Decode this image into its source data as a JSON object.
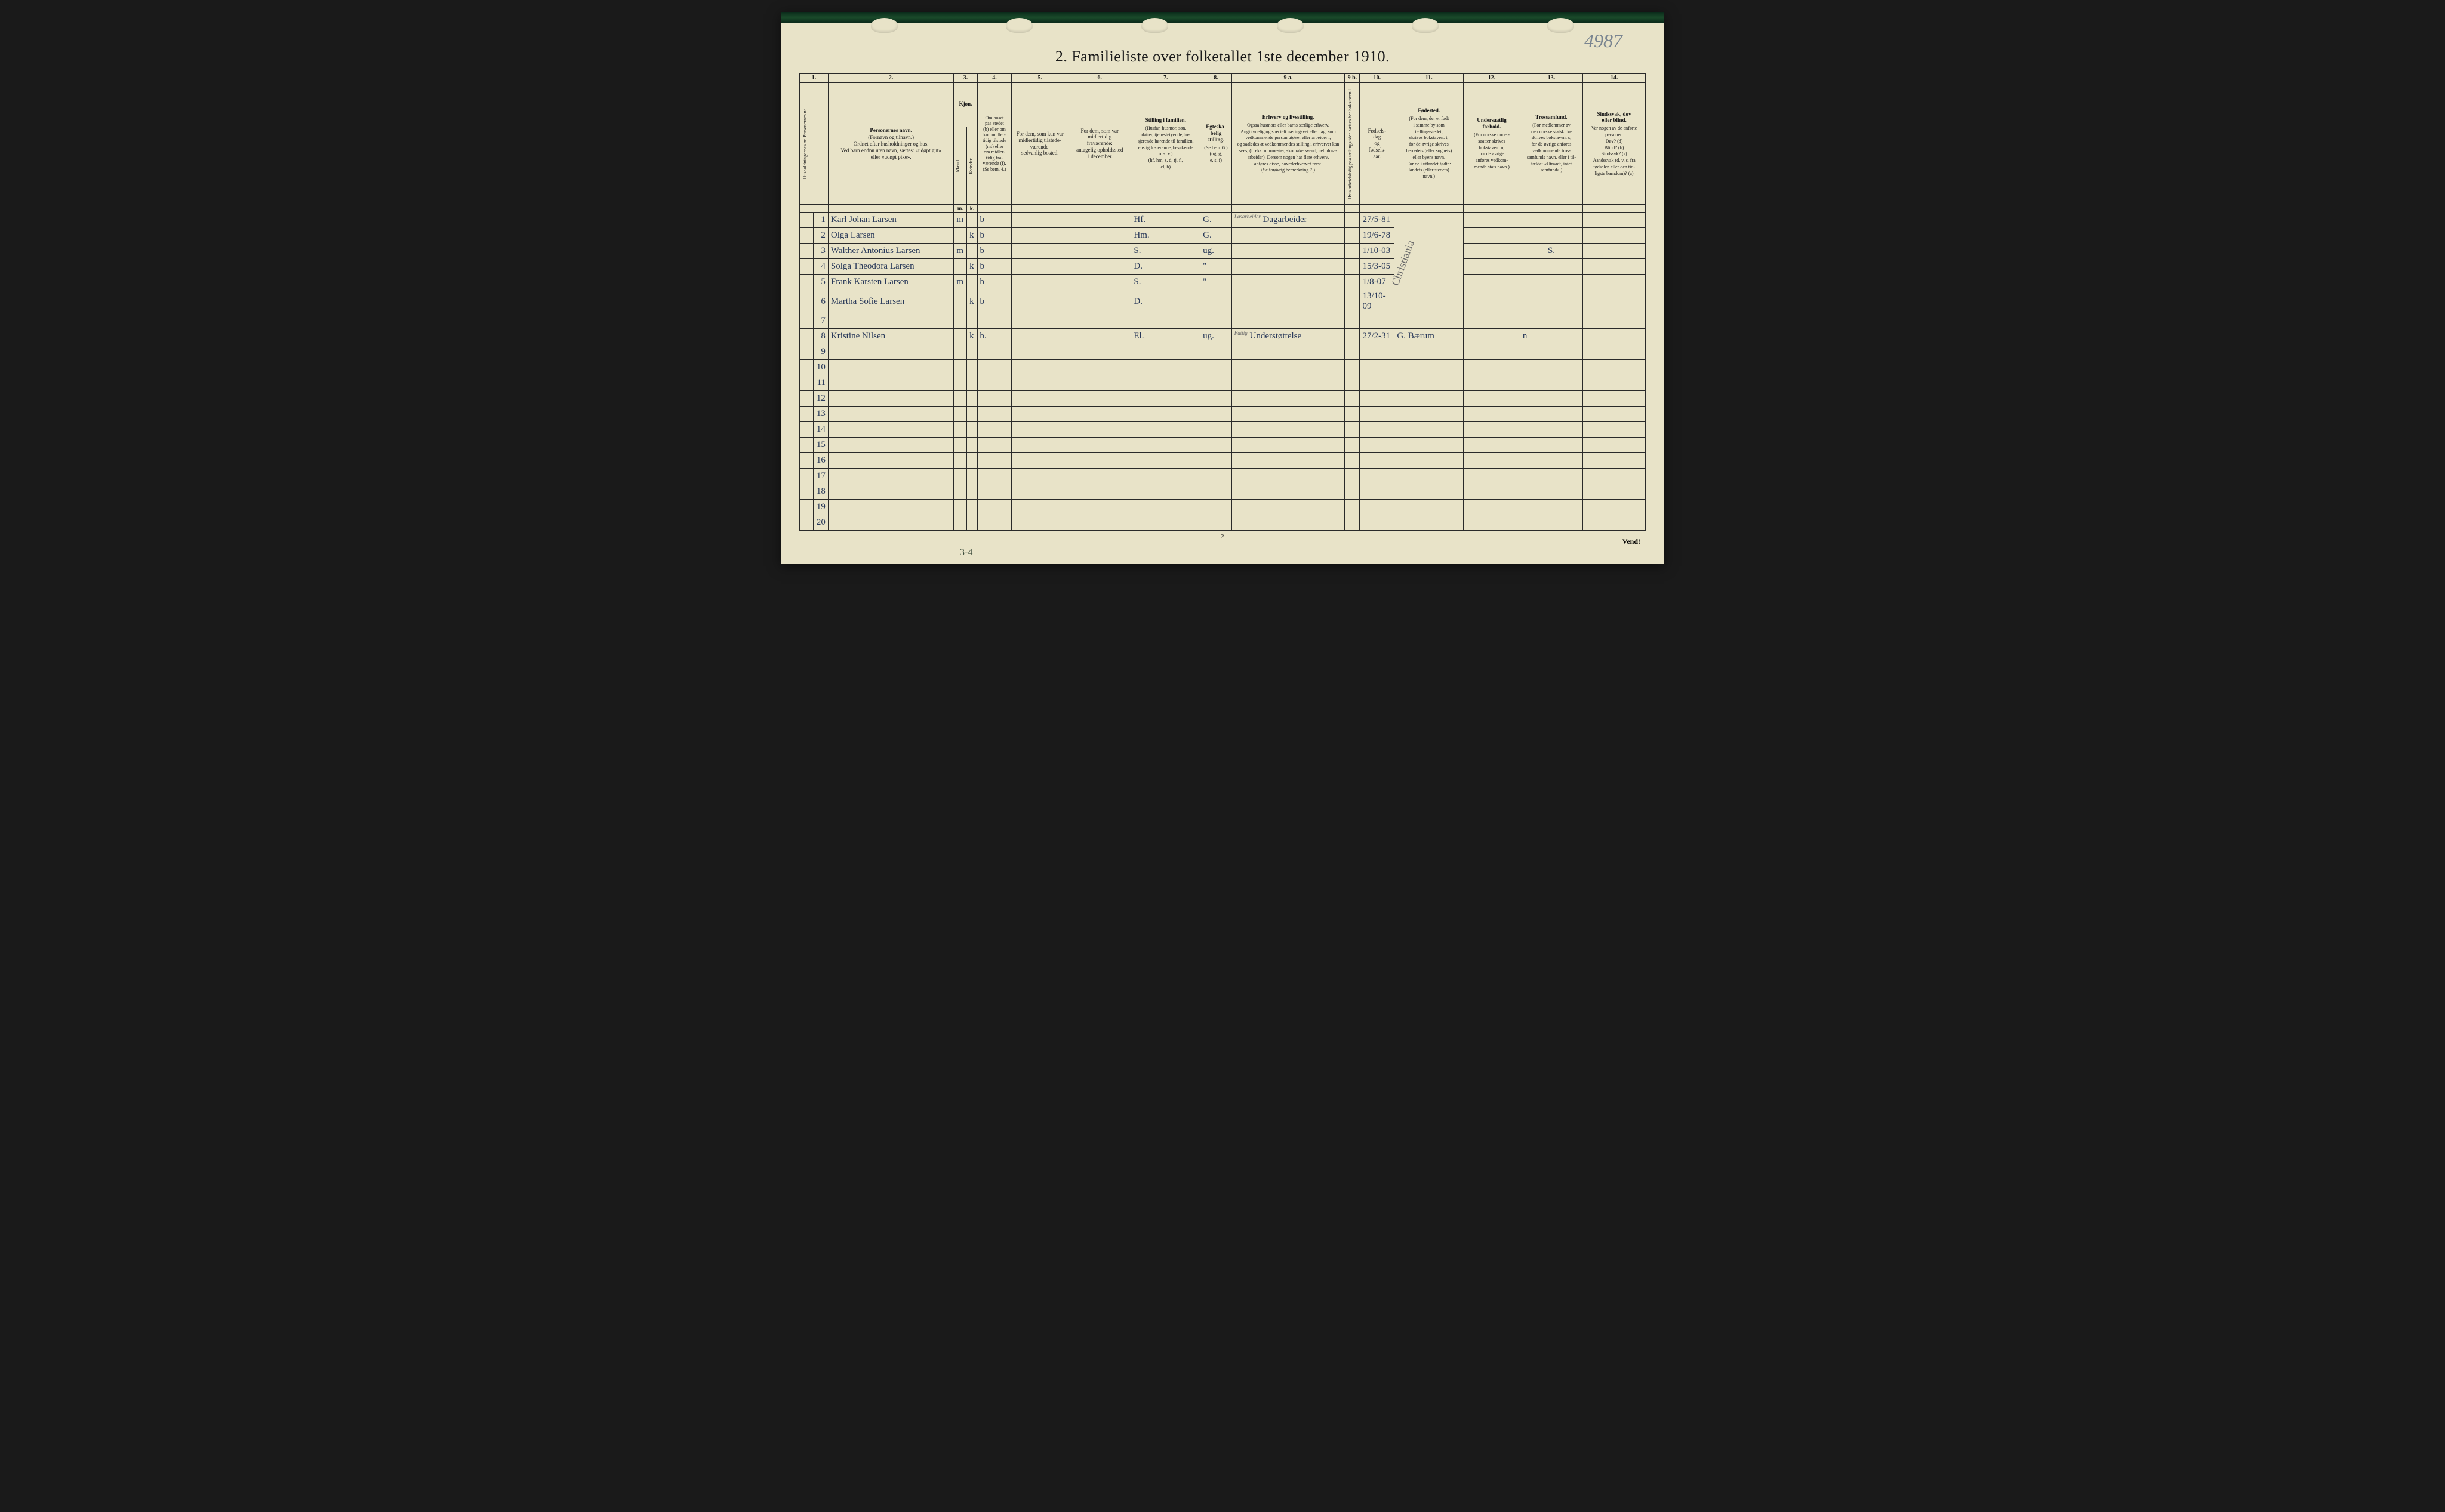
{
  "page": {
    "handwritten_number": "4987",
    "title": "2.  Familieliste over folketallet 1ste december 1910.",
    "footer_page": "2",
    "bottom_annotation": "3-4",
    "vend": "Vend!",
    "birthplace_vertical": "Christiania"
  },
  "col_numbers": [
    "1.",
    "2.",
    "3.",
    "4.",
    "5.",
    "6.",
    "7.",
    "8.",
    "9 a.",
    "9 b.",
    "10.",
    "11.",
    "12.",
    "13.",
    "14."
  ],
  "headers": {
    "c1": "Husholdningernes nr.\nPersonernes nr.",
    "c2_title": "Personernes navn.",
    "c2_sub": "(Fornavn og tilnavn.)\nOrdnet efter husholdninger og hus.\nVed barn endnu uten navn, sættes: «udøpt gut»\neller «udøpt pike».",
    "c3_title": "Kjøn.",
    "c3_m": "Mænd.",
    "c3_k": "Kvinder.",
    "c3_mk_m": "m.",
    "c3_mk_k": "k.",
    "c4": "Om bosat\npaa stedet\n(b) eller om\nkun midler-\ntidig tilstede\n(mt) eller\nom midler-\ntidig fra-\nværende (f).\n(Se bem. 4.)",
    "c5": "For dem, som kun var\nmidlertidig tilstede-\nværende:\nsedvanlig bosted.",
    "c6": "For dem, som var\nmidlertidig\nfraværende:\nantagelig opholdssted\n1 december.",
    "c7_title": "Stilling i familien.",
    "c7_sub": "(Husfar, husmor, søn,\ndatter, tjenestetyende, lo-\nsjerende hørende til familien,\nenslig losjerende, besøkende\no. s. v.)\n(hf, hm, s, d, tj, fl,\nel, b)",
    "c8_title": "Egteska-\nbelig\nstilling.",
    "c8_sub": "(Se bem. 6.)\n(ug, g,\ne, s, f)",
    "c9_title": "Erhverv og livsstilling.",
    "c9_sub": "Ogsaa husmors eller barns særlige erhverv.\nAngi tydelig og specielt næringsvei eller fag, som\nvedkommende person utøver eller arbeider i,\nog saaledes at vedkommendes stilling i erhvervet kan\nsees, (f. eks. murmester, skomakersvend, cellulose-\narbeider). Dersom nogen har flere erhverv,\nanføres disse, hovederhvervet først.\n(Se forøvrig bemerkning 7.)",
    "c9b": "Hvis arbeidsledig\npaa tællingstiden sættes\nher bokstaven l.",
    "c10_title": "Fødsels-\ndag\nog\nfødsels-\naar.",
    "c11_title": "Fødested.",
    "c11_sub": "(For dem, der er født\ni samme by som\ntællingsstedet,\nskrives bokstaven: t;\nfor de øvrige skrives\nherredets (eller sognets)\neller byens navn.\nFor de i utlandet fødte:\nlandets (eller stedets)\nnavn.)",
    "c12_title": "Undersaatlig\nforhold.",
    "c12_sub": "(For norske under-\nsaatter skrives\nbokstaven: n;\nfor de øvrige\nanføres vedkom-\nmende stats navn.)",
    "c13_title": "Trossamfund.",
    "c13_sub": "(For medlemmer av\nden norske statskirke\nskrives bokstaven: s;\nfor de øvrige anføres\nvedkommende tros-\nsamfunds navn, eller i til-\nfælde: «Utraadt, intet\nsamfund».)",
    "c14_title": "Sindssvak, døv\neller blind.",
    "c14_sub": "Var nogen av de anførte\npersoner:\nDøv?        (d)\nBlind?      (b)\nSindssyk?  (s)\nAandssvak (d. v. s. fra\nfødselen eller den tid-\nligste barndom)? (a)"
  },
  "rows": [
    {
      "n": "1",
      "name": "Karl Johan Larsen",
      "m": "m",
      "k": "",
      "b": "b",
      "c5": "",
      "c6": "",
      "c7": "Hf.",
      "c8": "G.",
      "c9_sup": "Løsarbeider",
      "c9": "Dagarbeider",
      "c10": "27/5-81",
      "c11": "",
      "c12": "",
      "c13": "",
      "c14": ""
    },
    {
      "n": "2",
      "name": "Olga Larsen",
      "m": "",
      "k": "k",
      "b": "b",
      "c5": "",
      "c6": "",
      "c7": "Hm.",
      "c8": "G.",
      "c9_sup": "",
      "c9": "",
      "c10": "19/6-78",
      "c11": "",
      "c12": "",
      "c13": "",
      "c14": ""
    },
    {
      "n": "3",
      "name": "Walther Antonius Larsen",
      "m": "m",
      "k": "",
      "b": "b",
      "c5": "",
      "c6": "",
      "c7": "S.",
      "c8": "ug.",
      "c9_sup": "",
      "c9": "",
      "c10": "1/10-03",
      "c11": "",
      "c12": "",
      "c13": "S.",
      "c14": ""
    },
    {
      "n": "4",
      "name": "Solga Theodora Larsen",
      "m": "",
      "k": "k",
      "b": "b",
      "c5": "",
      "c6": "",
      "c7": "D.",
      "c8": "\"",
      "c9_sup": "",
      "c9": "",
      "c10": "15/3-05",
      "c11": "",
      "c12": "",
      "c13": "",
      "c14": ""
    },
    {
      "n": "5",
      "name": "Frank Karsten Larsen",
      "m": "m",
      "k": "",
      "b": "b",
      "c5": "",
      "c6": "",
      "c7": "S.",
      "c8": "\"",
      "c9_sup": "",
      "c9": "",
      "c10": "1/8-07",
      "c11": "",
      "c12": "",
      "c13": "",
      "c14": ""
    },
    {
      "n": "6",
      "name": "Martha Sofie Larsen",
      "m": "",
      "k": "k",
      "b": "b",
      "c5": "",
      "c6": "",
      "c7": "D.",
      "c8": "",
      "c9_sup": "",
      "c9": "",
      "c10": "13/10-09",
      "c11": "",
      "c12": "",
      "c13": "",
      "c14": ""
    },
    {
      "n": "7",
      "name": "",
      "m": "",
      "k": "",
      "b": "",
      "c5": "",
      "c6": "",
      "c7": "",
      "c8": "",
      "c9_sup": "",
      "c9": "",
      "c10": "",
      "c11": "",
      "c12": "",
      "c13": "",
      "c14": ""
    },
    {
      "n": "8",
      "name": "Kristine Nilsen",
      "m": "",
      "k": "k",
      "b": "b.",
      "c5": "",
      "c6": "",
      "c7": "El.",
      "c8": "ug.",
      "c9_sup": "Fattig",
      "c9": "Understøttelse",
      "c10": "27/2-31",
      "c11": "G. Bærum",
      "c12": "",
      "c13": "n",
      "c14": ""
    }
  ],
  "empty_rows": [
    "9",
    "10",
    "11",
    "12",
    "13",
    "14",
    "15",
    "16",
    "17",
    "18",
    "19",
    "20"
  ],
  "colors": {
    "paper": "#e8e3c8",
    "ink": "#1a1a1a",
    "handwriting": "#2a3a5a",
    "pencil": "#7a8590",
    "border_top": "#0a2a1a"
  }
}
